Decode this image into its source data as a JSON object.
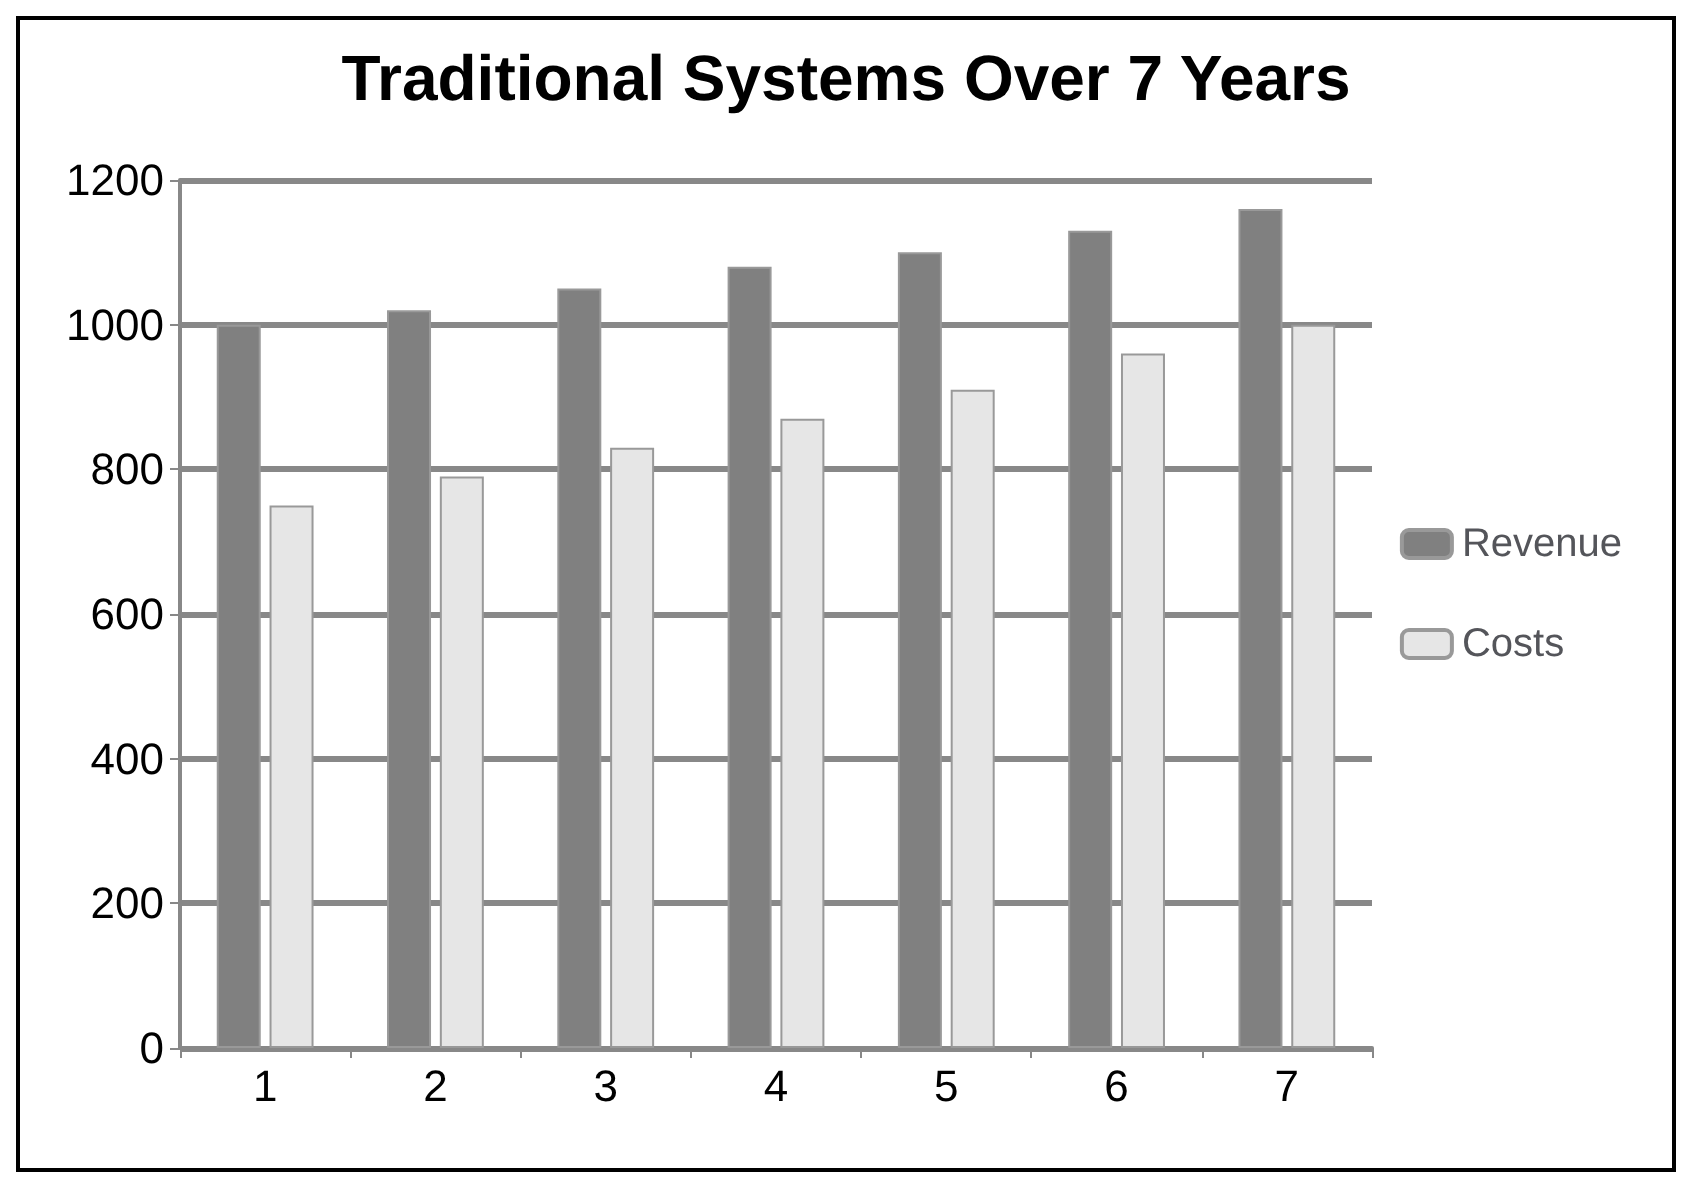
{
  "chart_data": {
    "type": "bar",
    "title": "Traditional Systems Over 7 Years",
    "categories": [
      "1",
      "2",
      "3",
      "4",
      "5",
      "6",
      "7"
    ],
    "series": [
      {
        "name": "Revenue",
        "color": "#808080",
        "values": [
          1000,
          1020,
          1050,
          1080,
          1100,
          1130,
          1160
        ]
      },
      {
        "name": "Costs",
        "color": "#e6e6e6",
        "values": [
          750,
          790,
          830,
          870,
          910,
          960,
          1000
        ]
      }
    ],
    "ylim": [
      0,
      1200
    ],
    "yticks": [
      0,
      200,
      400,
      600,
      800,
      1000,
      1200
    ],
    "grid": "y",
    "legend": "right"
  }
}
